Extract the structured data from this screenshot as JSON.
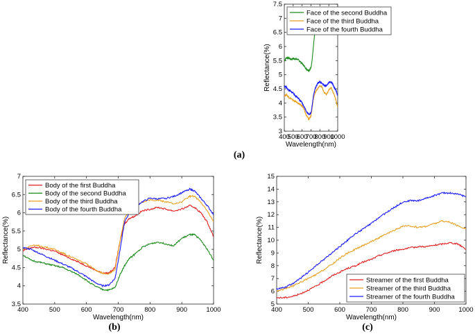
{
  "chart_data": [
    {
      "id": "a",
      "type": "line",
      "panel_tag": "(a)",
      "xlabel": "Wavelength(nm)",
      "ylabel": "Reflectance(%)",
      "xlim": [
        400,
        1000
      ],
      "ylim": [
        3,
        7.5
      ],
      "xticks": [
        400,
        500,
        600,
        700,
        800,
        900,
        1000
      ],
      "yticks": [
        3,
        3.5,
        4,
        4.5,
        5,
        5.5,
        6,
        6.5,
        7,
        7.5
      ],
      "grid": false,
      "legend_position": "top-left",
      "x": [
        400,
        425,
        450,
        475,
        500,
        525,
        550,
        575,
        600,
        625,
        650,
        675,
        700,
        715,
        730,
        745,
        760,
        775,
        800,
        825,
        850,
        875,
        900,
        925,
        940,
        960,
        980,
        1000
      ],
      "series": [
        {
          "name": "Face of the second Buddha",
          "color": "#1a8a1a",
          "values": [
            5.5,
            5.6,
            5.6,
            5.55,
            5.58,
            5.55,
            5.55,
            5.48,
            5.4,
            5.3,
            5.2,
            5.15,
            5.25,
            5.6,
            6.1,
            6.55,
            6.75,
            6.85,
            6.95,
            6.9,
            6.85,
            6.8,
            6.95,
            7.1,
            7.1,
            6.95,
            6.8,
            6.5
          ]
        },
        {
          "name": "Face of the third Buddha",
          "color": "#e8a020",
          "values": [
            4.25,
            4.3,
            4.2,
            4.15,
            4.1,
            4.05,
            4.0,
            3.95,
            3.9,
            3.75,
            3.55,
            3.42,
            3.55,
            3.9,
            4.2,
            4.35,
            4.45,
            4.5,
            4.62,
            4.55,
            4.35,
            4.3,
            4.45,
            4.55,
            4.45,
            4.3,
            4.1,
            3.85
          ]
        },
        {
          "name": "Face of the fourth Buddha",
          "color": "#1a1aff",
          "values": [
            4.6,
            4.55,
            4.45,
            4.4,
            4.35,
            4.25,
            4.2,
            4.1,
            4.0,
            3.85,
            3.7,
            3.6,
            3.65,
            3.95,
            4.3,
            4.5,
            4.6,
            4.7,
            4.75,
            4.7,
            4.6,
            4.62,
            4.72,
            4.75,
            4.7,
            4.55,
            4.45,
            4.25
          ]
        }
      ]
    },
    {
      "id": "b",
      "type": "line",
      "panel_tag": "(b)",
      "xlabel": "Wavelength(nm)",
      "ylabel": "Reflectance(%)",
      "xlim": [
        400,
        1000
      ],
      "ylim": [
        3.5,
        7
      ],
      "xticks": [
        400,
        500,
        600,
        700,
        800,
        900,
        1000
      ],
      "yticks": [
        3.5,
        4,
        4.5,
        5,
        5.5,
        6,
        6.5,
        7
      ],
      "grid": false,
      "legend_position": "top-left",
      "x": [
        400,
        425,
        450,
        475,
        500,
        525,
        550,
        575,
        600,
        625,
        650,
        670,
        690,
        705,
        720,
        735,
        750,
        775,
        800,
        825,
        850,
        875,
        900,
        925,
        940,
        960,
        980,
        1000
      ],
      "series": [
        {
          "name": "Body of the first Buddha",
          "color": "#e02020",
          "values": [
            4.95,
            5.05,
            5.05,
            5.0,
            4.95,
            4.85,
            4.75,
            4.65,
            4.55,
            4.45,
            4.35,
            4.35,
            4.5,
            5.2,
            5.7,
            5.85,
            5.9,
            6.05,
            6.1,
            6.15,
            6.1,
            6.05,
            6.1,
            6.2,
            6.15,
            6.0,
            5.75,
            5.35
          ]
        },
        {
          "name": "Body of the second Buddha",
          "color": "#1a8a1a",
          "values": [
            4.85,
            4.7,
            4.65,
            4.6,
            4.55,
            4.5,
            4.4,
            4.3,
            4.15,
            4.0,
            3.9,
            3.88,
            3.95,
            4.3,
            4.55,
            4.75,
            4.85,
            5.05,
            5.15,
            5.2,
            5.15,
            5.1,
            5.3,
            5.4,
            5.4,
            5.25,
            5.0,
            4.7
          ]
        },
        {
          "name": "Body of the third Buddha",
          "color": "#e8a020",
          "values": [
            5.0,
            5.1,
            5.1,
            5.05,
            5.0,
            4.9,
            4.8,
            4.7,
            4.6,
            4.45,
            4.35,
            4.33,
            4.45,
            5.2,
            5.85,
            6.05,
            6.15,
            6.3,
            6.35,
            6.35,
            6.3,
            6.25,
            6.3,
            6.45,
            6.45,
            6.3,
            6.05,
            5.75
          ]
        },
        {
          "name": "Body of the fourth Buddha",
          "color": "#1a1aff",
          "values": [
            5.05,
            5.0,
            4.9,
            4.8,
            4.7,
            4.6,
            4.5,
            4.38,
            4.25,
            4.1,
            4.0,
            4.02,
            4.2,
            4.95,
            5.75,
            6.0,
            6.15,
            6.3,
            6.4,
            6.38,
            6.4,
            6.45,
            6.55,
            6.65,
            6.6,
            6.4,
            6.2,
            5.95
          ]
        }
      ]
    },
    {
      "id": "c",
      "type": "line",
      "panel_tag": "(c)",
      "xlabel": "Wavelength(nm)",
      "ylabel": "Reflectance(%)",
      "xlim": [
        400,
        1000
      ],
      "ylim": [
        5,
        15
      ],
      "xticks": [
        400,
        500,
        600,
        700,
        800,
        900,
        1000
      ],
      "yticks": [
        5,
        6,
        7,
        8,
        9,
        10,
        11,
        12,
        13,
        14,
        15
      ],
      "grid": false,
      "legend_position": "bottom-right",
      "x": [
        400,
        425,
        450,
        475,
        500,
        525,
        550,
        575,
        600,
        625,
        650,
        675,
        700,
        725,
        750,
        775,
        800,
        825,
        850,
        875,
        900,
        925,
        950,
        975,
        1000
      ],
      "series": [
        {
          "name": "Streamer of the first Buddha",
          "color": "#e02020",
          "values": [
            5.5,
            5.5,
            5.6,
            5.8,
            6.1,
            6.4,
            6.8,
            7.2,
            7.5,
            7.8,
            8.0,
            8.3,
            8.5,
            8.8,
            9.0,
            9.2,
            9.3,
            9.4,
            9.5,
            9.5,
            9.6,
            9.7,
            9.8,
            9.7,
            9.3
          ]
        },
        {
          "name": "Streamer of the third Buddha",
          "color": "#e8a020",
          "values": [
            6.0,
            6.2,
            6.4,
            6.7,
            7.0,
            7.3,
            7.7,
            8.1,
            8.6,
            9.0,
            9.3,
            9.6,
            9.9,
            10.2,
            10.5,
            10.8,
            11.1,
            11.1,
            11.0,
            11.1,
            11.3,
            11.5,
            11.4,
            11.1,
            10.9
          ]
        },
        {
          "name": "Streamer of the fourth Buddha",
          "color": "#1a1aff",
          "values": [
            6.2,
            6.3,
            6.6,
            7.0,
            7.5,
            8.0,
            8.5,
            9.0,
            9.5,
            10.0,
            10.5,
            10.9,
            11.3,
            11.8,
            12.2,
            12.6,
            13.0,
            13.1,
            13.1,
            13.3,
            13.5,
            13.7,
            13.7,
            13.6,
            13.4
          ]
        }
      ]
    }
  ]
}
